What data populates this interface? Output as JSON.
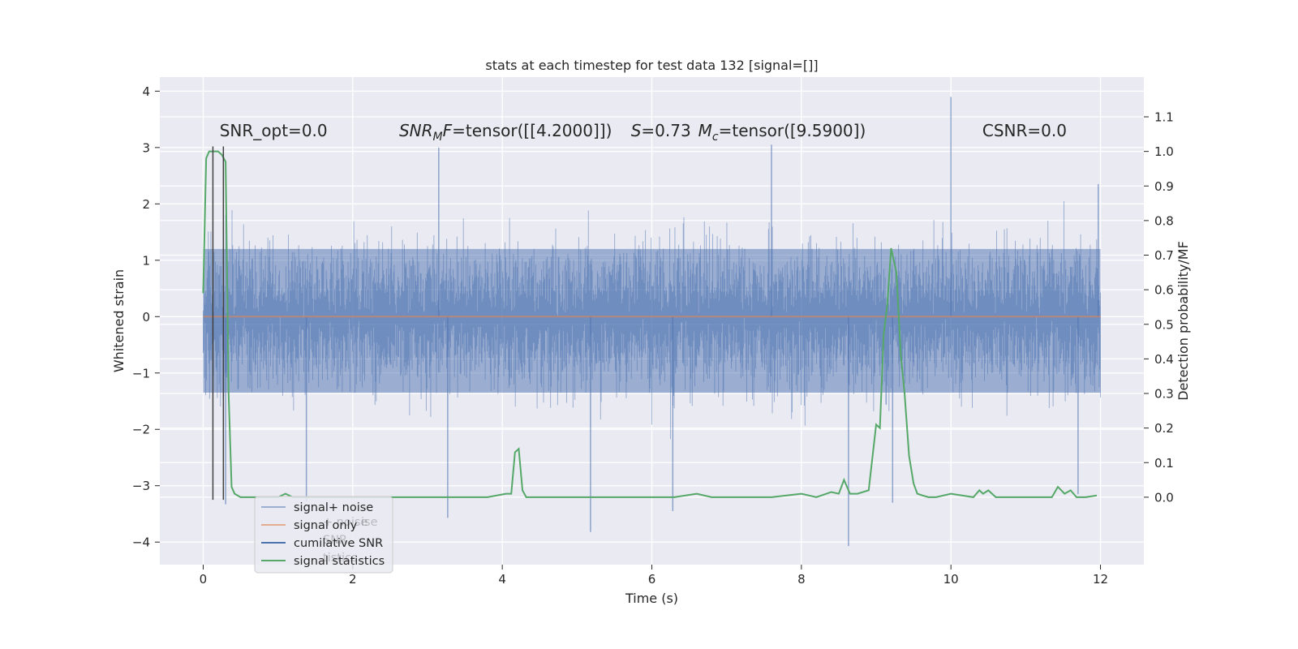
{
  "chart_data": {
    "type": "line",
    "title": "stats at each timestep for test data 132 [signal=[]]",
    "xlabel": "Time (s)",
    "ylabel": "Whitened strain",
    "y2label": "Detection probability/MF",
    "xlim": [
      -0.58,
      12.58
    ],
    "ylim": [
      -4.4,
      4.25
    ],
    "y2lim": [
      -0.195,
      1.215
    ],
    "xticks": [
      0,
      2,
      4,
      6,
      8,
      10,
      12
    ],
    "xtick_labels": [
      "0",
      "2",
      "4",
      "6",
      "8",
      "10",
      "12"
    ],
    "yticks": [
      4,
      3,
      2,
      1,
      0,
      -1,
      -2,
      -3,
      -4
    ],
    "ytick_labels": [
      "4",
      "3",
      "2",
      "1",
      "0",
      "−1",
      "−2",
      "−3",
      "−4"
    ],
    "y2ticks": [
      1.1,
      1.0,
      0.9,
      0.8,
      0.7,
      0.6,
      0.5,
      0.4,
      0.3,
      0.2,
      0.1,
      0.0
    ],
    "y2tick_labels": [
      "1.1",
      "1.0",
      "0.9",
      "0.8",
      "0.7",
      "0.6",
      "0.5",
      "0.4",
      "0.3",
      "0.2",
      "0.1",
      "0.0"
    ],
    "grid": true,
    "legend_position": "lower-left",
    "series": [
      {
        "name": "signal+ noise",
        "color": "#4c72b0",
        "axis": "left",
        "description": "whitened strain, dense noise roughly within -2.6..2.6 with spikes",
        "x_range": [
          0,
          12
        ],
        "body_range": [
          -1.35,
          1.2
        ],
        "typical_extent": [
          -2.5,
          2.5
        ],
        "spikes": [
          {
            "x": 10.0,
            "y": 3.9
          },
          {
            "x": 8.63,
            "y": -4.07
          },
          {
            "x": 5.18,
            "y": -3.82
          },
          {
            "x": 3.27,
            "y": -3.57
          },
          {
            "x": 6.28,
            "y": -3.45
          },
          {
            "x": 0.3,
            "y": -3.33
          },
          {
            "x": 1.38,
            "y": -3.28
          },
          {
            "x": 9.22,
            "y": -3.3
          },
          {
            "x": 11.97,
            "y": 2.35
          },
          {
            "x": 11.7,
            "y": -3.15
          },
          {
            "x": 7.6,
            "y": 3.05
          },
          {
            "x": 3.15,
            "y": 3.0
          }
        ]
      },
      {
        "name": "signal only",
        "color": "#dd8452",
        "axis": "left",
        "x": [
          0,
          12
        ],
        "y": [
          0,
          0
        ]
      },
      {
        "name": "cumilative SNR",
        "color": "#4c72b0",
        "axis": "left",
        "x": [],
        "y": []
      },
      {
        "name": "signal statistics",
        "color": "#55a868",
        "axis": "right",
        "x": [
          0.0,
          0.04,
          0.08,
          0.12,
          0.16,
          0.2,
          0.25,
          0.3,
          0.34,
          0.38,
          0.42,
          0.5,
          0.6,
          0.8,
          1.0,
          1.1,
          1.2,
          1.4,
          1.8,
          2.2,
          2.6,
          3.0,
          3.4,
          3.8,
          4.05,
          4.12,
          4.17,
          4.22,
          4.27,
          4.32,
          4.4,
          4.6,
          5.0,
          5.4,
          5.8,
          6.0,
          6.3,
          6.6,
          6.8,
          7.2,
          7.6,
          8.0,
          8.2,
          8.4,
          8.5,
          8.57,
          8.65,
          8.75,
          8.9,
          9.0,
          9.05,
          9.1,
          9.15,
          9.2,
          9.27,
          9.33,
          9.38,
          9.44,
          9.5,
          9.55,
          9.62,
          9.7,
          9.8,
          10.0,
          10.3,
          10.38,
          10.43,
          10.5,
          10.6,
          11.0,
          11.35,
          11.43,
          11.52,
          11.6,
          11.68,
          11.8,
          11.95
        ],
        "y": [
          0.59,
          0.98,
          1.0,
          1.0,
          1.0,
          1.0,
          0.99,
          0.97,
          0.3,
          0.03,
          0.01,
          0.0,
          0.0,
          0.0,
          0.0,
          0.01,
          0.0,
          0.0,
          0.0,
          0.0,
          0.0,
          0.0,
          0.0,
          0.0,
          0.01,
          0.01,
          0.13,
          0.14,
          0.02,
          0.0,
          0.0,
          0.0,
          0.0,
          0.0,
          0.0,
          0.0,
          0.0,
          0.01,
          0.0,
          0.0,
          0.0,
          0.01,
          0.0,
          0.015,
          0.01,
          0.05,
          0.01,
          0.01,
          0.02,
          0.21,
          0.2,
          0.47,
          0.56,
          0.72,
          0.65,
          0.41,
          0.3,
          0.12,
          0.04,
          0.01,
          0.005,
          0.0,
          0.0,
          0.01,
          0.0,
          0.02,
          0.01,
          0.02,
          0.0,
          0.0,
          0.0,
          0.03,
          0.01,
          0.02,
          0.0,
          0.0,
          0.005
        ]
      }
    ],
    "vlines": [
      {
        "x": 0.13,
        "y_from": -3.25,
        "y_to": 3.02,
        "color": "#404040"
      },
      {
        "x": 0.27,
        "y_from": -3.25,
        "y_to": 3.02,
        "color": "#404040"
      }
    ],
    "annotations": [
      {
        "key": "snr_opt",
        "text": "SNR_opt=0.0",
        "anchor_x": 0.22,
        "anchor_y": 3.2
      },
      {
        "key": "snr_mf",
        "text_prefix": "SNR",
        "text_sub": "M",
        "text_rest": "F=tensor([[4.2000]])",
        "anchor_x": 2.62,
        "anchor_y": 3.2
      },
      {
        "key": "s",
        "text_prefix": "S",
        "text_rest": "=0.73",
        "anchor_x": 5.72,
        "anchor_y": 3.2
      },
      {
        "key": "mc",
        "text_prefix": "M",
        "text_sub": "c",
        "text_rest": "=tensor([9.5900])",
        "anchor_x": 6.62,
        "anchor_y": 3.2
      },
      {
        "key": "csnr",
        "text": "CSNR=0.0",
        "anchor_x": 10.42,
        "anchor_y": 3.2
      }
    ],
    "legend_items": [
      {
        "label": "signal+ noise",
        "color": "#4c72b0",
        "alpha": 0.5
      },
      {
        "label": "signal only",
        "color": "#dd8452",
        "alpha": 0.6
      },
      {
        "label": "cumilative SNR",
        "color": "#4c72b0",
        "alpha": 1.0
      },
      {
        "label": "signal statistics",
        "color": "#55a868",
        "alpha": 1.0
      }
    ],
    "legend_ghost_text": [
      "+ noise",
      "ise",
      "SNR",
      "tistics"
    ]
  }
}
